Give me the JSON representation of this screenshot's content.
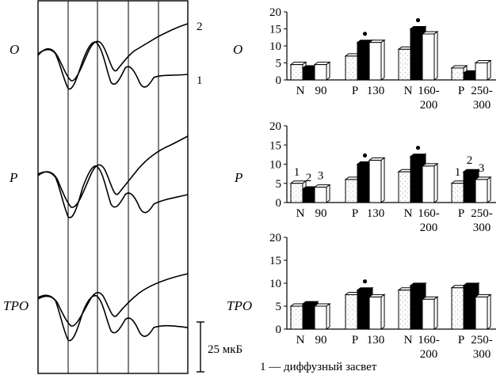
{
  "rows": [
    {
      "label": "O"
    },
    {
      "label": "P"
    },
    {
      "label": "TPO"
    }
  ],
  "trace_labels": [
    "2",
    "1"
  ],
  "scale_label": "25 мкБ",
  "legend_note": "1 — диффузный засвет",
  "bar_marks": [
    "1",
    "2",
    "3"
  ],
  "chart_data": [
    {
      "type": "bar",
      "title": "O",
      "categories": [
        [
          "N",
          "90"
        ],
        [
          "P",
          "130"
        ],
        [
          "N",
          "160-",
          "200"
        ],
        [
          "P",
          "250-",
          "300"
        ]
      ],
      "ylim": [
        0,
        20
      ],
      "yticks": [
        0,
        5,
        10,
        15,
        20
      ],
      "series": [
        {
          "fill": "#f4f4f4",
          "values": [
            4.5,
            7,
            9,
            3.5
          ]
        },
        {
          "fill": "#000000",
          "values": [
            3.5,
            11,
            15,
            2
          ]
        },
        {
          "fill": "#ffffff",
          "values": [
            4.5,
            11,
            13.5,
            5
          ]
        }
      ],
      "significant": [
        1,
        2
      ],
      "bar_number_labels": []
    },
    {
      "type": "bar",
      "title": "P",
      "categories": [
        [
          "N",
          "90"
        ],
        [
          "P",
          "130"
        ],
        [
          "N",
          "160-",
          "200"
        ],
        [
          "P",
          "250-",
          "300"
        ]
      ],
      "ylim": [
        0,
        20
      ],
      "yticks": [
        0,
        5,
        10,
        15,
        20
      ],
      "series": [
        {
          "fill": "#f4f4f4",
          "values": [
            5,
            6,
            8,
            5
          ]
        },
        {
          "fill": "#000000",
          "values": [
            3.5,
            10,
            12,
            8
          ]
        },
        {
          "fill": "#ffffff",
          "values": [
            4,
            11,
            9.5,
            6
          ]
        }
      ],
      "significant": [
        1,
        2
      ],
      "bar_number_labels": [
        0,
        3
      ]
    },
    {
      "type": "bar",
      "title": "TPO",
      "categories": [
        [
          "N",
          "90"
        ],
        [
          "P",
          "130"
        ],
        [
          "N",
          "160-",
          "200"
        ],
        [
          "P",
          "250-",
          "300"
        ]
      ],
      "ylim": [
        0,
        20
      ],
      "yticks": [
        0,
        5,
        10,
        15,
        20
      ],
      "series": [
        {
          "fill": "#f4f4f4",
          "values": [
            5,
            7.5,
            8.5,
            9
          ]
        },
        {
          "fill": "#000000",
          "values": [
            5.5,
            8.5,
            9.5,
            9.5
          ]
        },
        {
          "fill": "#ffffff",
          "values": [
            5,
            7,
            6.5,
            7
          ]
        }
      ],
      "significant": [
        1
      ],
      "bar_number_labels": []
    }
  ]
}
